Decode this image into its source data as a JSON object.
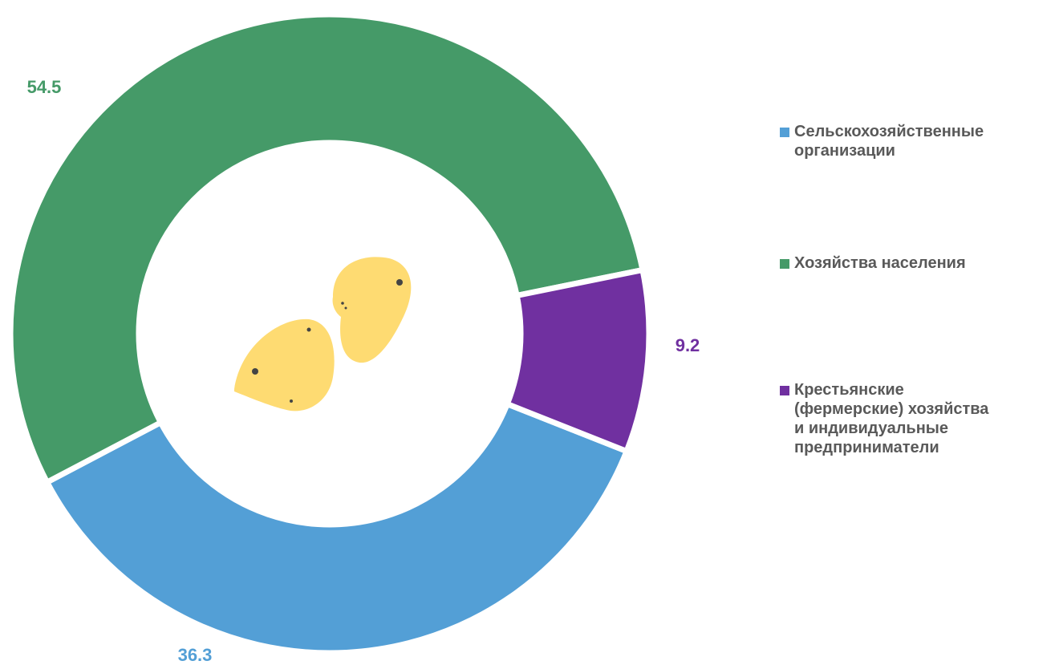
{
  "chart_data": {
    "type": "donut",
    "categories": [
      "Сельскохозяйственные\nорганизации",
      "Хозяйства населения",
      "Крестьянские\n(фермерские) хозяйства\nи индивидуальные\nпредприниматели"
    ],
    "values": [
      36.3,
      54.5,
      9.2
    ],
    "colors": [
      "#539fd6",
      "#459a68",
      "#7030a0"
    ],
    "legend": "right"
  }
}
